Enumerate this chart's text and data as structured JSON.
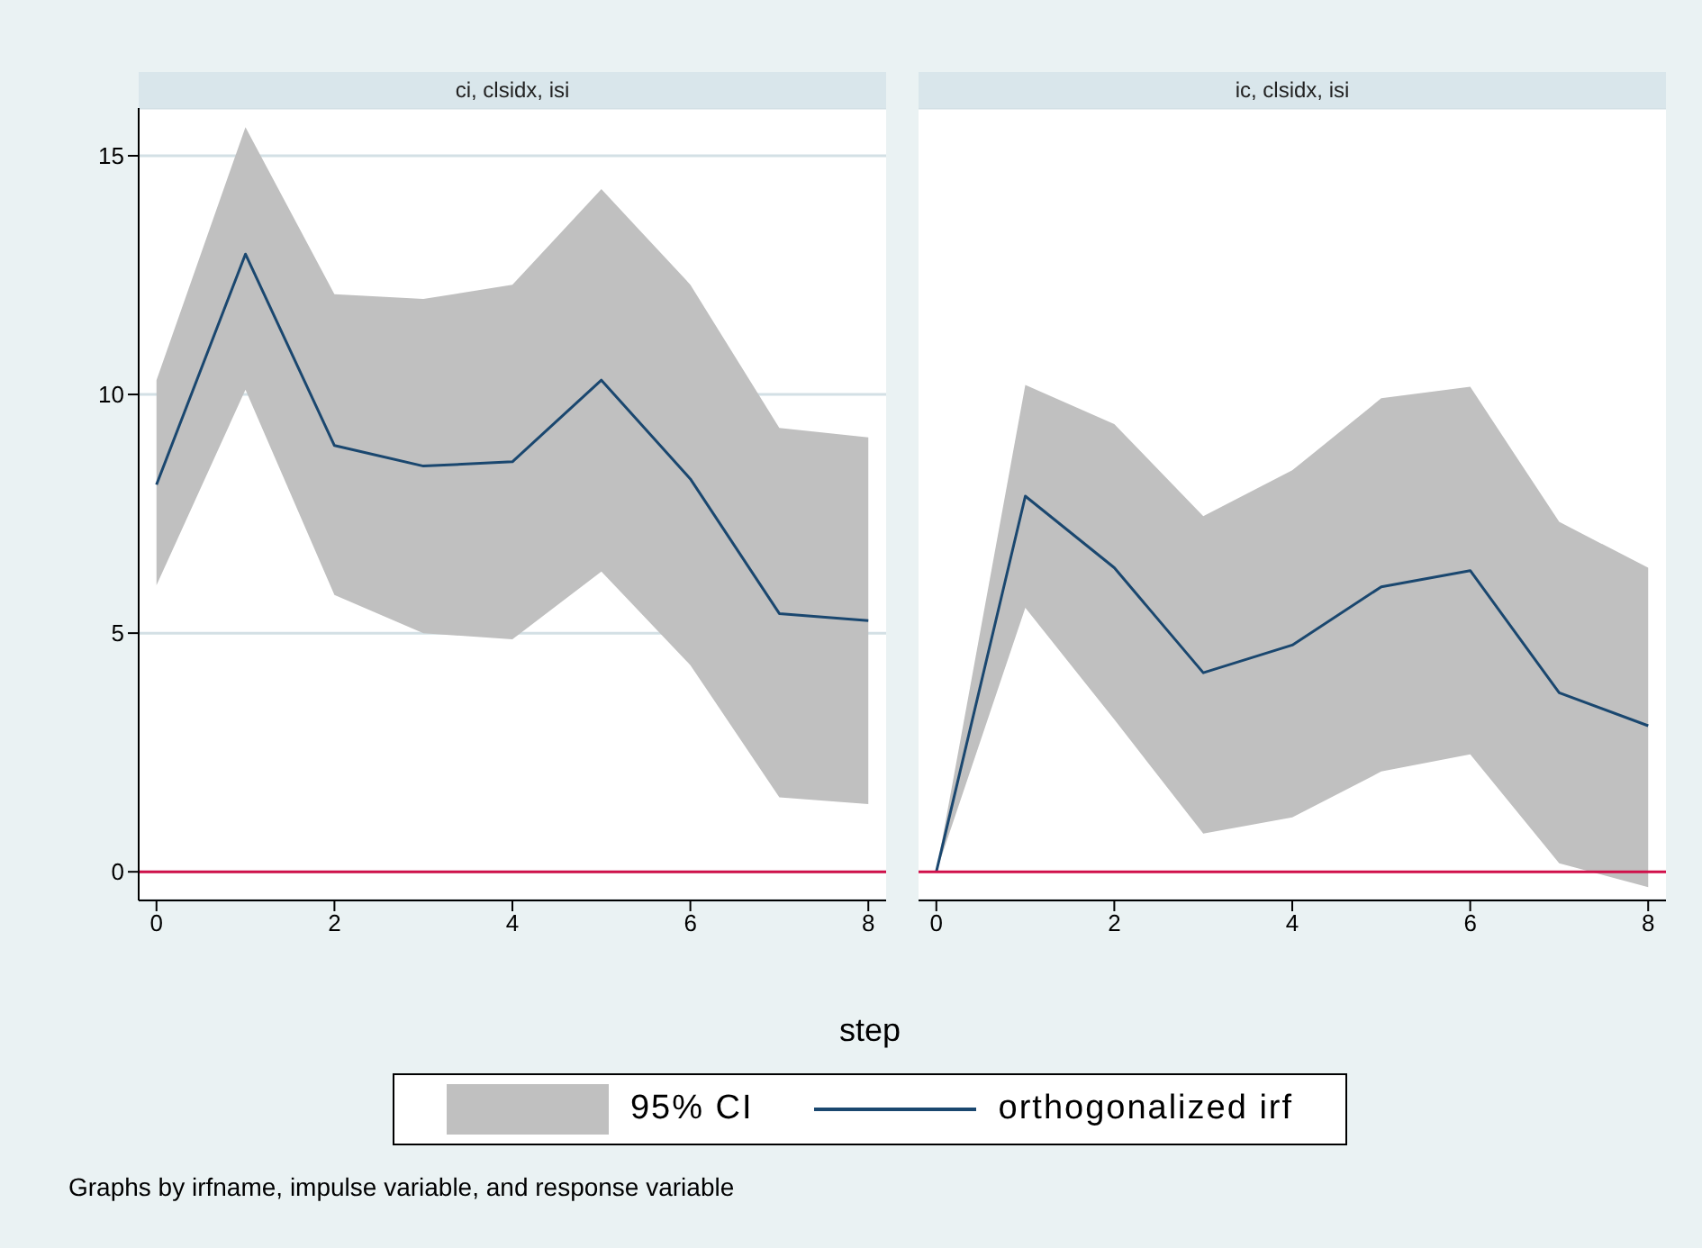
{
  "chart_data": [
    {
      "type": "line",
      "title": "ci, clsidx, isi",
      "xlabel": "step",
      "x": [
        0,
        1,
        2,
        3,
        4,
        5,
        6,
        7,
        8
      ],
      "xlim": [
        -0.2,
        8.2
      ],
      "xticks": [
        0,
        2,
        4,
        6,
        8
      ],
      "ylim": [
        -0.6,
        16
      ],
      "yticks": [
        0,
        5,
        10,
        15
      ],
      "grid": "y",
      "legend": "bottom",
      "legend_title": "95% CI",
      "ref_lines": [
        {
          "axis": "y",
          "value": 0,
          "color": "#d0104a"
        }
      ],
      "series": [
        {
          "name": "orthogonalized irf",
          "color": "#1a476f",
          "values": [
            8.11,
            12.94,
            8.93,
            8.5,
            8.59,
            10.3,
            8.23,
            5.41,
            5.26
          ],
          "lower": [
            6.0,
            10.1,
            5.8,
            5.0,
            4.87,
            6.29,
            4.33,
            1.56,
            1.42
          ],
          "upper": [
            10.3,
            15.6,
            12.1,
            12.0,
            12.3,
            14.3,
            12.3,
            9.3,
            9.1
          ]
        }
      ],
      "annotations": [
        "Graphs by irfname, impulse variable, and response variable"
      ]
    },
    {
      "type": "line",
      "title": "ic, clsidx, isi",
      "x": [
        0,
        1,
        2,
        3,
        4,
        5,
        6,
        7,
        8
      ],
      "xlim": [
        -0.2,
        8.2
      ],
      "xticks": [
        0,
        2,
        4,
        6,
        8
      ],
      "ylim": [
        -0.6,
        16
      ],
      "yticks": [
        0,
        5,
        10,
        15
      ],
      "grid": "y",
      "tick_labels": "x",
      "ref_lines": [
        {
          "axis": "y",
          "value": 0,
          "color": "#d0104a"
        }
      ],
      "series": [
        {
          "color": "#1a476f",
          "values": [
            0,
            7.87,
            6.37,
            4.17,
            4.75,
            5.97,
            6.31,
            3.75,
            3.06
          ],
          "lower": [
            0,
            5.53,
            3.19,
            0.8,
            1.14,
            2.1,
            2.46,
            0.18,
            -0.32
          ],
          "upper": [
            0,
            10.2,
            9.38,
            7.45,
            8.41,
            9.92,
            10.16,
            7.33,
            6.37
          ]
        }
      ]
    }
  ]
}
